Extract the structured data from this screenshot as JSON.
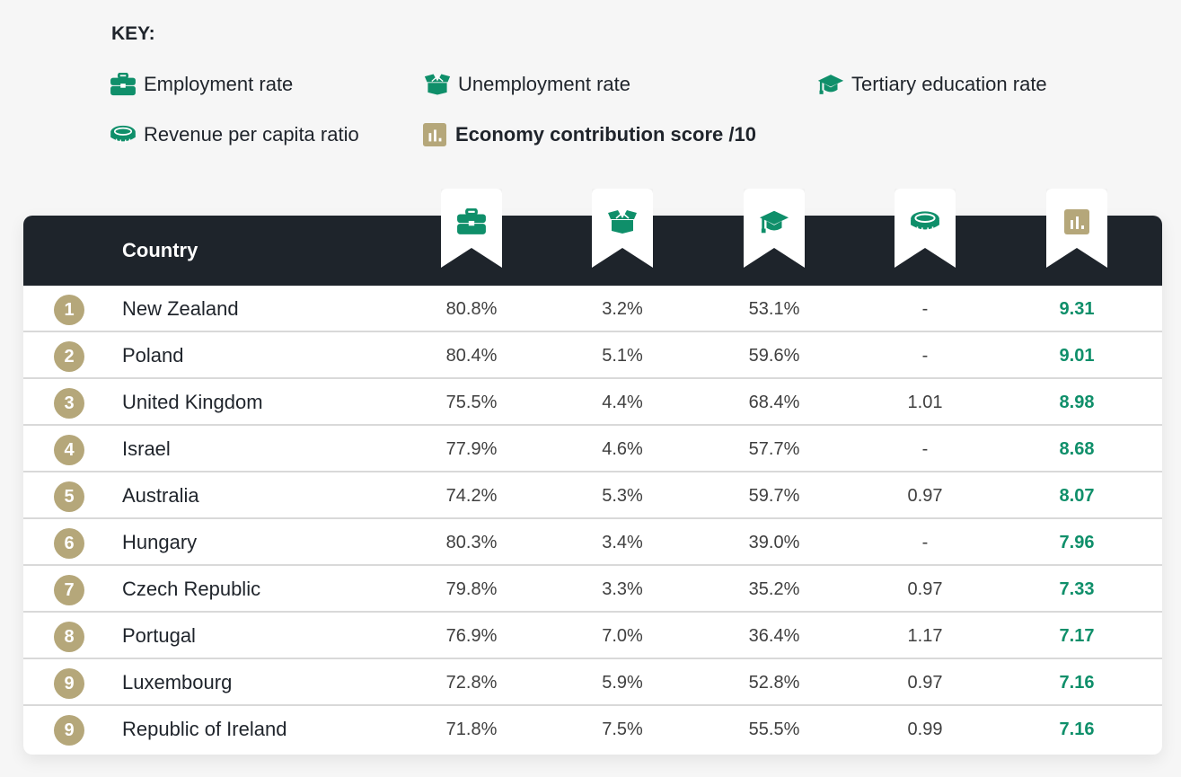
{
  "key": {
    "title": "KEY:",
    "items": [
      {
        "icon": "briefcase-icon",
        "label": "Employment rate"
      },
      {
        "icon": "open-box-icon",
        "label": "Unemployment rate"
      },
      {
        "icon": "graduation-cap-icon",
        "label": "Tertiary education rate"
      },
      {
        "icon": "coin-icon",
        "label": "Revenue per capita ratio"
      },
      {
        "icon": "bar-chart-icon",
        "label": "Economy contribution score /10"
      }
    ]
  },
  "colors": {
    "accent_green": "#0f8f6a",
    "rank_gold": "#b5a77a",
    "header_dark": "#1e242b"
  },
  "chart_data": {
    "type": "table",
    "title": "KEY:",
    "columns": [
      "Country",
      "Employment rate",
      "Unemployment rate",
      "Tertiary education rate",
      "Revenue per capita ratio",
      "Economy contribution score /10"
    ],
    "header_country": "Country",
    "rows": [
      {
        "rank": "1",
        "country": "New Zealand",
        "employment": "80.8%",
        "unemployment": "3.2%",
        "tertiary": "53.1%",
        "revenue": "-",
        "score": "9.31"
      },
      {
        "rank": "2",
        "country": "Poland",
        "employment": "80.4%",
        "unemployment": "5.1%",
        "tertiary": "59.6%",
        "revenue": "-",
        "score": "9.01"
      },
      {
        "rank": "3",
        "country": "United Kingdom",
        "employment": "75.5%",
        "unemployment": "4.4%",
        "tertiary": "68.4%",
        "revenue": "1.01",
        "score": "8.98"
      },
      {
        "rank": "4",
        "country": "Israel",
        "employment": "77.9%",
        "unemployment": "4.6%",
        "tertiary": "57.7%",
        "revenue": "-",
        "score": "8.68"
      },
      {
        "rank": "5",
        "country": "Australia",
        "employment": "74.2%",
        "unemployment": "5.3%",
        "tertiary": "59.7%",
        "revenue": "0.97",
        "score": "8.07"
      },
      {
        "rank": "6",
        "country": "Hungary",
        "employment": "80.3%",
        "unemployment": "3.4%",
        "tertiary": "39.0%",
        "revenue": "-",
        "score": "7.96"
      },
      {
        "rank": "7",
        "country": "Czech Republic",
        "employment": "79.8%",
        "unemployment": "3.3%",
        "tertiary": "35.2%",
        "revenue": "0.97",
        "score": "7.33"
      },
      {
        "rank": "8",
        "country": "Portugal",
        "employment": "76.9%",
        "unemployment": "7.0%",
        "tertiary": "36.4%",
        "revenue": "1.17",
        "score": "7.17"
      },
      {
        "rank": "9",
        "country": "Luxembourg",
        "employment": "72.8%",
        "unemployment": "5.9%",
        "tertiary": "52.8%",
        "revenue": "0.97",
        "score": "7.16"
      },
      {
        "rank": "9",
        "country": "Republic of Ireland",
        "employment": "71.8%",
        "unemployment": "7.5%",
        "tertiary": "55.5%",
        "revenue": "0.99",
        "score": "7.16"
      }
    ]
  }
}
